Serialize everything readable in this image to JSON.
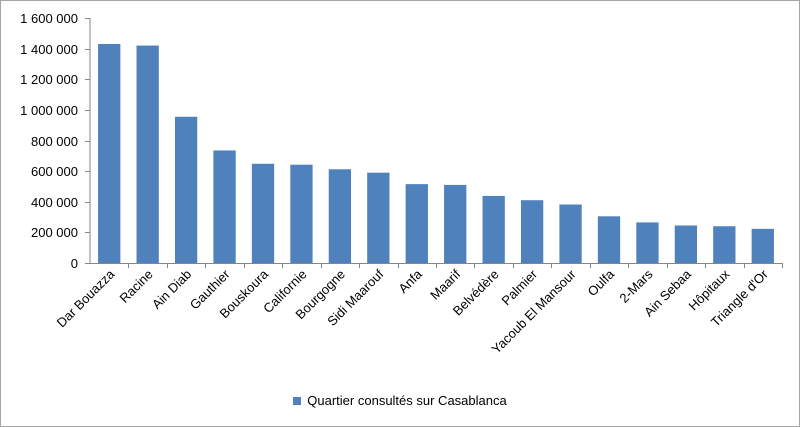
{
  "chart_data": {
    "type": "bar",
    "categories": [
      "Dar Bouazza",
      "Racine",
      "Ain Diab",
      "Gauthier",
      "Bouskoura",
      "Californie",
      "Bourgogne",
      "Sidi Maarouf",
      "Anfa",
      "Maarif",
      "Belvédère",
      "Palmier",
      "Yacoub El Mansour",
      "Oulfa",
      "2-Mars",
      "Ain Sebaa",
      "Hôpitaux",
      "Triangle d'Or"
    ],
    "series": [
      {
        "name": "Quartier consultés sur Casablanca",
        "values": [
          1430000,
          1420000,
          955000,
          735000,
          648000,
          642000,
          612000,
          590000,
          515000,
          510000,
          438000,
          410000,
          382000,
          305000,
          265000,
          245000,
          240000,
          223000
        ],
        "color": "#4f81bd"
      }
    ],
    "ylim": [
      0,
      1600000
    ],
    "yticks": [
      0,
      200000,
      400000,
      600000,
      800000,
      1000000,
      1200000,
      1400000,
      1600000
    ],
    "ytick_labels": [
      "0",
      "200 000",
      "400 000",
      "600 000",
      "800 000",
      "1 000 000",
      "1 200 000",
      "1 400 000",
      "1 600 000"
    ],
    "grid": false,
    "legend_position": "bottom"
  }
}
